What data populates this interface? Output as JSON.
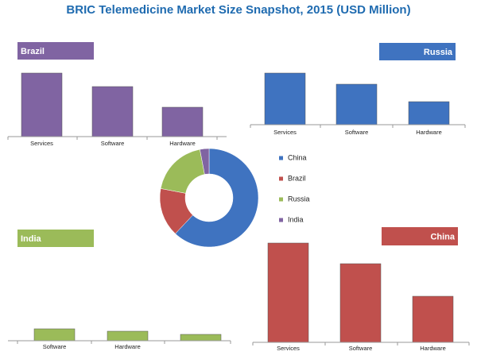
{
  "title": "BRIC Telemedicine Market Size Snapshot, 2015 (USD Million)",
  "chart_data": [
    {
      "type": "bar",
      "title": "Brazil",
      "categories": [
        "Services",
        "Software",
        "Hardware"
      ],
      "values": [
        80,
        63,
        37
      ],
      "color": "#8064a2",
      "ylim": [
        0,
        130
      ]
    },
    {
      "type": "bar",
      "title": "Russia",
      "categories": [
        "Services",
        "Software",
        "Hardware"
      ],
      "values": [
        65,
        51,
        29
      ],
      "color": "#3f73c0",
      "ylim": [
        0,
        130
      ]
    },
    {
      "type": "bar",
      "title": "India",
      "categories": [
        "Software",
        "Hardware",
        null
      ],
      "values": [
        15,
        12,
        8
      ],
      "color": "#9bbb59",
      "ylim": [
        0,
        130
      ]
    },
    {
      "type": "bar",
      "title": "China",
      "categories": [
        "Services",
        "Software",
        "Hardware"
      ],
      "values": [
        125,
        99,
        58
      ],
      "color": "#c0504d",
      "ylim": [
        0,
        130
      ]
    },
    {
      "type": "pie",
      "categories": [
        "China",
        "Brazil",
        "Russia",
        "India"
      ],
      "values": [
        62,
        16,
        19,
        3
      ],
      "colors": [
        "#3f73c0",
        "#c0504d",
        "#9bbb59",
        "#8064a2"
      ]
    }
  ]
}
